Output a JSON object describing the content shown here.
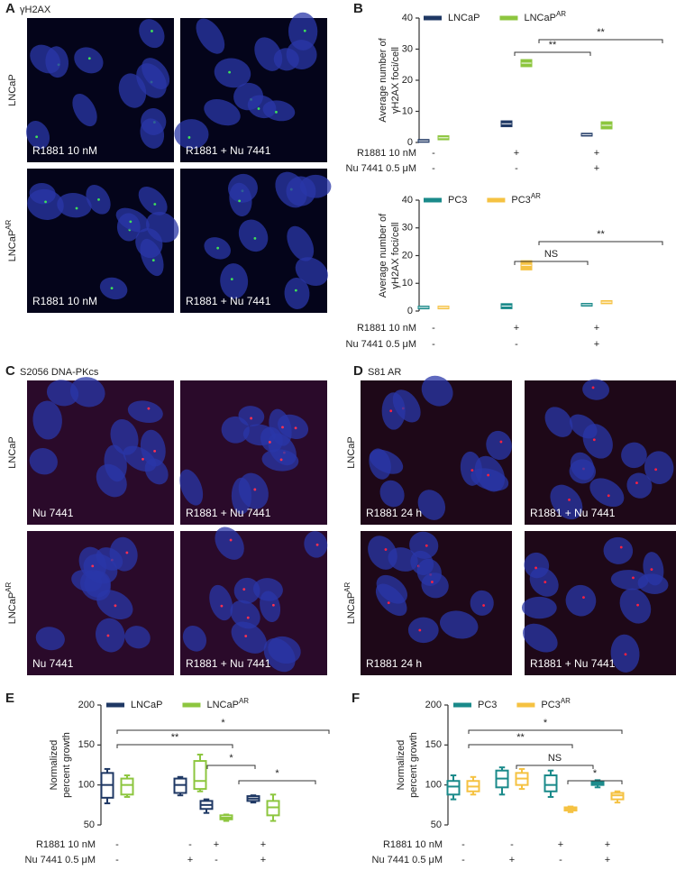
{
  "figure": {
    "panels": [
      {
        "letter": "A",
        "title": "γH2AX",
        "rows": [
          {
            "label": "LNCaP"
          },
          {
            "label": "LNCaP",
            "sup": "AR"
          }
        ],
        "images": [
          [
            "R1881 10 nM",
            "R1881 + Nu 7441"
          ],
          [
            "R1881 10 nM",
            "R1881 + Nu 7441"
          ]
        ]
      },
      {
        "letter": "C",
        "title": "S2056 DNA-PKcs",
        "rows": [
          {
            "label": "LNCaP"
          },
          {
            "label": "LNCaP",
            "sup": "AR"
          }
        ],
        "images": [
          [
            "Nu 7441",
            "R1881 + Nu 7441"
          ],
          [
            "Nu 7441",
            "R1881 + Nu 7441"
          ]
        ]
      },
      {
        "letter": "D",
        "title": "S81 AR",
        "rows": [
          {
            "label": "LNCaP"
          },
          {
            "label": "LNCaP",
            "sup": "AR"
          }
        ],
        "images": [
          [
            "R1881 24 h",
            "R1881 + Nu 7441"
          ],
          [
            "R1881 24 h",
            "R1881 + Nu 7441"
          ]
        ]
      }
    ]
  },
  "chart_data": [
    {
      "type": "box",
      "letter": "B",
      "ylabel": [
        "Average number of",
        "γH2AX foci/cell"
      ],
      "ylim": [
        0,
        40
      ],
      "yticks": [
        0,
        10,
        20,
        30,
        40
      ],
      "conditions": [
        {
          "label": "R1881 10 nM",
          "signs": [
            "-",
            "+",
            "+"
          ]
        },
        {
          "label": "Nu 7441 0.5 μM",
          "signs": [
            "-",
            "-",
            "+"
          ]
        }
      ],
      "series": [
        {
          "name": "LNCaP",
          "color": "#1f3864",
          "q1": [
            0.2,
            5.2,
            2.2
          ],
          "median": [
            0.5,
            6,
            2.5
          ],
          "q3": [
            0.8,
            6.8,
            2.8
          ]
        },
        {
          "name": "LNCaP",
          "sup": "AR",
          "color": "#8dc63f",
          "q1": [
            1,
            24.5,
            4.5
          ],
          "median": [
            1.5,
            25.5,
            5.5
          ],
          "q3": [
            2,
            26.5,
            6.5
          ]
        }
      ],
      "annotations": [
        {
          "label": "**"
        },
        {
          "label": "**"
        }
      ]
    },
    {
      "type": "box",
      "ylabel": [
        "Average number of",
        "γH2AX foci/cell"
      ],
      "ylim": [
        0,
        40
      ],
      "yticks": [
        0,
        10,
        20,
        30,
        40
      ],
      "conditions": [
        {
          "label": "R1881 10 nM",
          "signs": [
            "-",
            "+",
            "+"
          ]
        },
        {
          "label": "Nu 7441 0.5 μM",
          "signs": [
            "-",
            "-",
            "+"
          ]
        }
      ],
      "series": [
        {
          "name": "PC3",
          "color": "#1a8a8a",
          "q1": [
            1,
            1,
            2
          ],
          "median": [
            1.3,
            1.8,
            2.3
          ],
          "q3": [
            1.6,
            2.5,
            2.6
          ]
        },
        {
          "name": "PC3",
          "sup": "AR",
          "color": "#f5c242",
          "q1": [
            1,
            15,
            2.8
          ],
          "median": [
            1.3,
            16.5,
            3.2
          ],
          "q3": [
            1.6,
            18,
            3.6
          ]
        }
      ],
      "annotations": [
        {
          "label": "NS"
        },
        {
          "label": "**"
        }
      ]
    },
    {
      "type": "box",
      "letter": "E",
      "ylabel": [
        "Normalized",
        "percent growth"
      ],
      "ylim": [
        50,
        200
      ],
      "yticks": [
        50,
        100,
        150,
        200
      ],
      "conditions": [
        {
          "label": "R1881 10 nM",
          "signs": [
            "-",
            "-",
            "+",
            "+"
          ]
        },
        {
          "label": "Nu 7441 0.5 μM",
          "signs": [
            "-",
            "+",
            "-",
            "+"
          ]
        }
      ],
      "series": [
        {
          "name": "LNCaP",
          "color": "#1f3864",
          "min": [
            77,
            87,
            65,
            78
          ],
          "q1": [
            84,
            90,
            70,
            80
          ],
          "median": [
            100,
            100,
            75,
            83
          ],
          "q3": [
            115,
            108,
            80,
            86
          ],
          "max": [
            120,
            110,
            82,
            87
          ]
        },
        {
          "name": "LNCaP",
          "sup": "AR",
          "color": "#8dc63f",
          "min": [
            85,
            92,
            55,
            55
          ],
          "q1": [
            88,
            95,
            57,
            62
          ],
          "median": [
            100,
            105,
            59,
            72
          ],
          "q3": [
            108,
            130,
            62,
            80
          ],
          "max": [
            112,
            138,
            63,
            88
          ]
        }
      ],
      "annotations": [
        {
          "label": "*"
        },
        {
          "label": "**"
        },
        {
          "label": "*"
        },
        {
          "label": "*"
        }
      ]
    },
    {
      "type": "box",
      "letter": "F",
      "ylabel": [
        "Normalized",
        "percent growth"
      ],
      "ylim": [
        50,
        200
      ],
      "yticks": [
        50,
        100,
        150,
        200
      ],
      "conditions": [
        {
          "label": "R1881 10 nM",
          "signs": [
            "-",
            "-",
            "+",
            "+"
          ]
        },
        {
          "label": "Nu 7441 0.5 μM",
          "signs": [
            "-",
            "+",
            "-",
            "+"
          ]
        }
      ],
      "series": [
        {
          "name": "PC3",
          "color": "#1a8a8a",
          "min": [
            82,
            88,
            85,
            97
          ],
          "q1": [
            88,
            97,
            92,
            100
          ],
          "median": [
            98,
            108,
            100,
            102
          ],
          "q3": [
            105,
            118,
            112,
            104
          ],
          "max": [
            112,
            122,
            118,
            106
          ]
        },
        {
          "name": "PC3",
          "sup": "AR",
          "color": "#f5c242",
          "min": [
            88,
            95,
            66,
            78
          ],
          "q1": [
            92,
            100,
            68,
            82
          ],
          "median": [
            98,
            108,
            70,
            87
          ],
          "q3": [
            105,
            115,
            72,
            90
          ],
          "max": [
            110,
            120,
            73,
            92
          ]
        }
      ],
      "annotations": [
        {
          "label": "*"
        },
        {
          "label": "**"
        },
        {
          "label": "NS"
        },
        {
          "label": "*"
        }
      ]
    }
  ]
}
